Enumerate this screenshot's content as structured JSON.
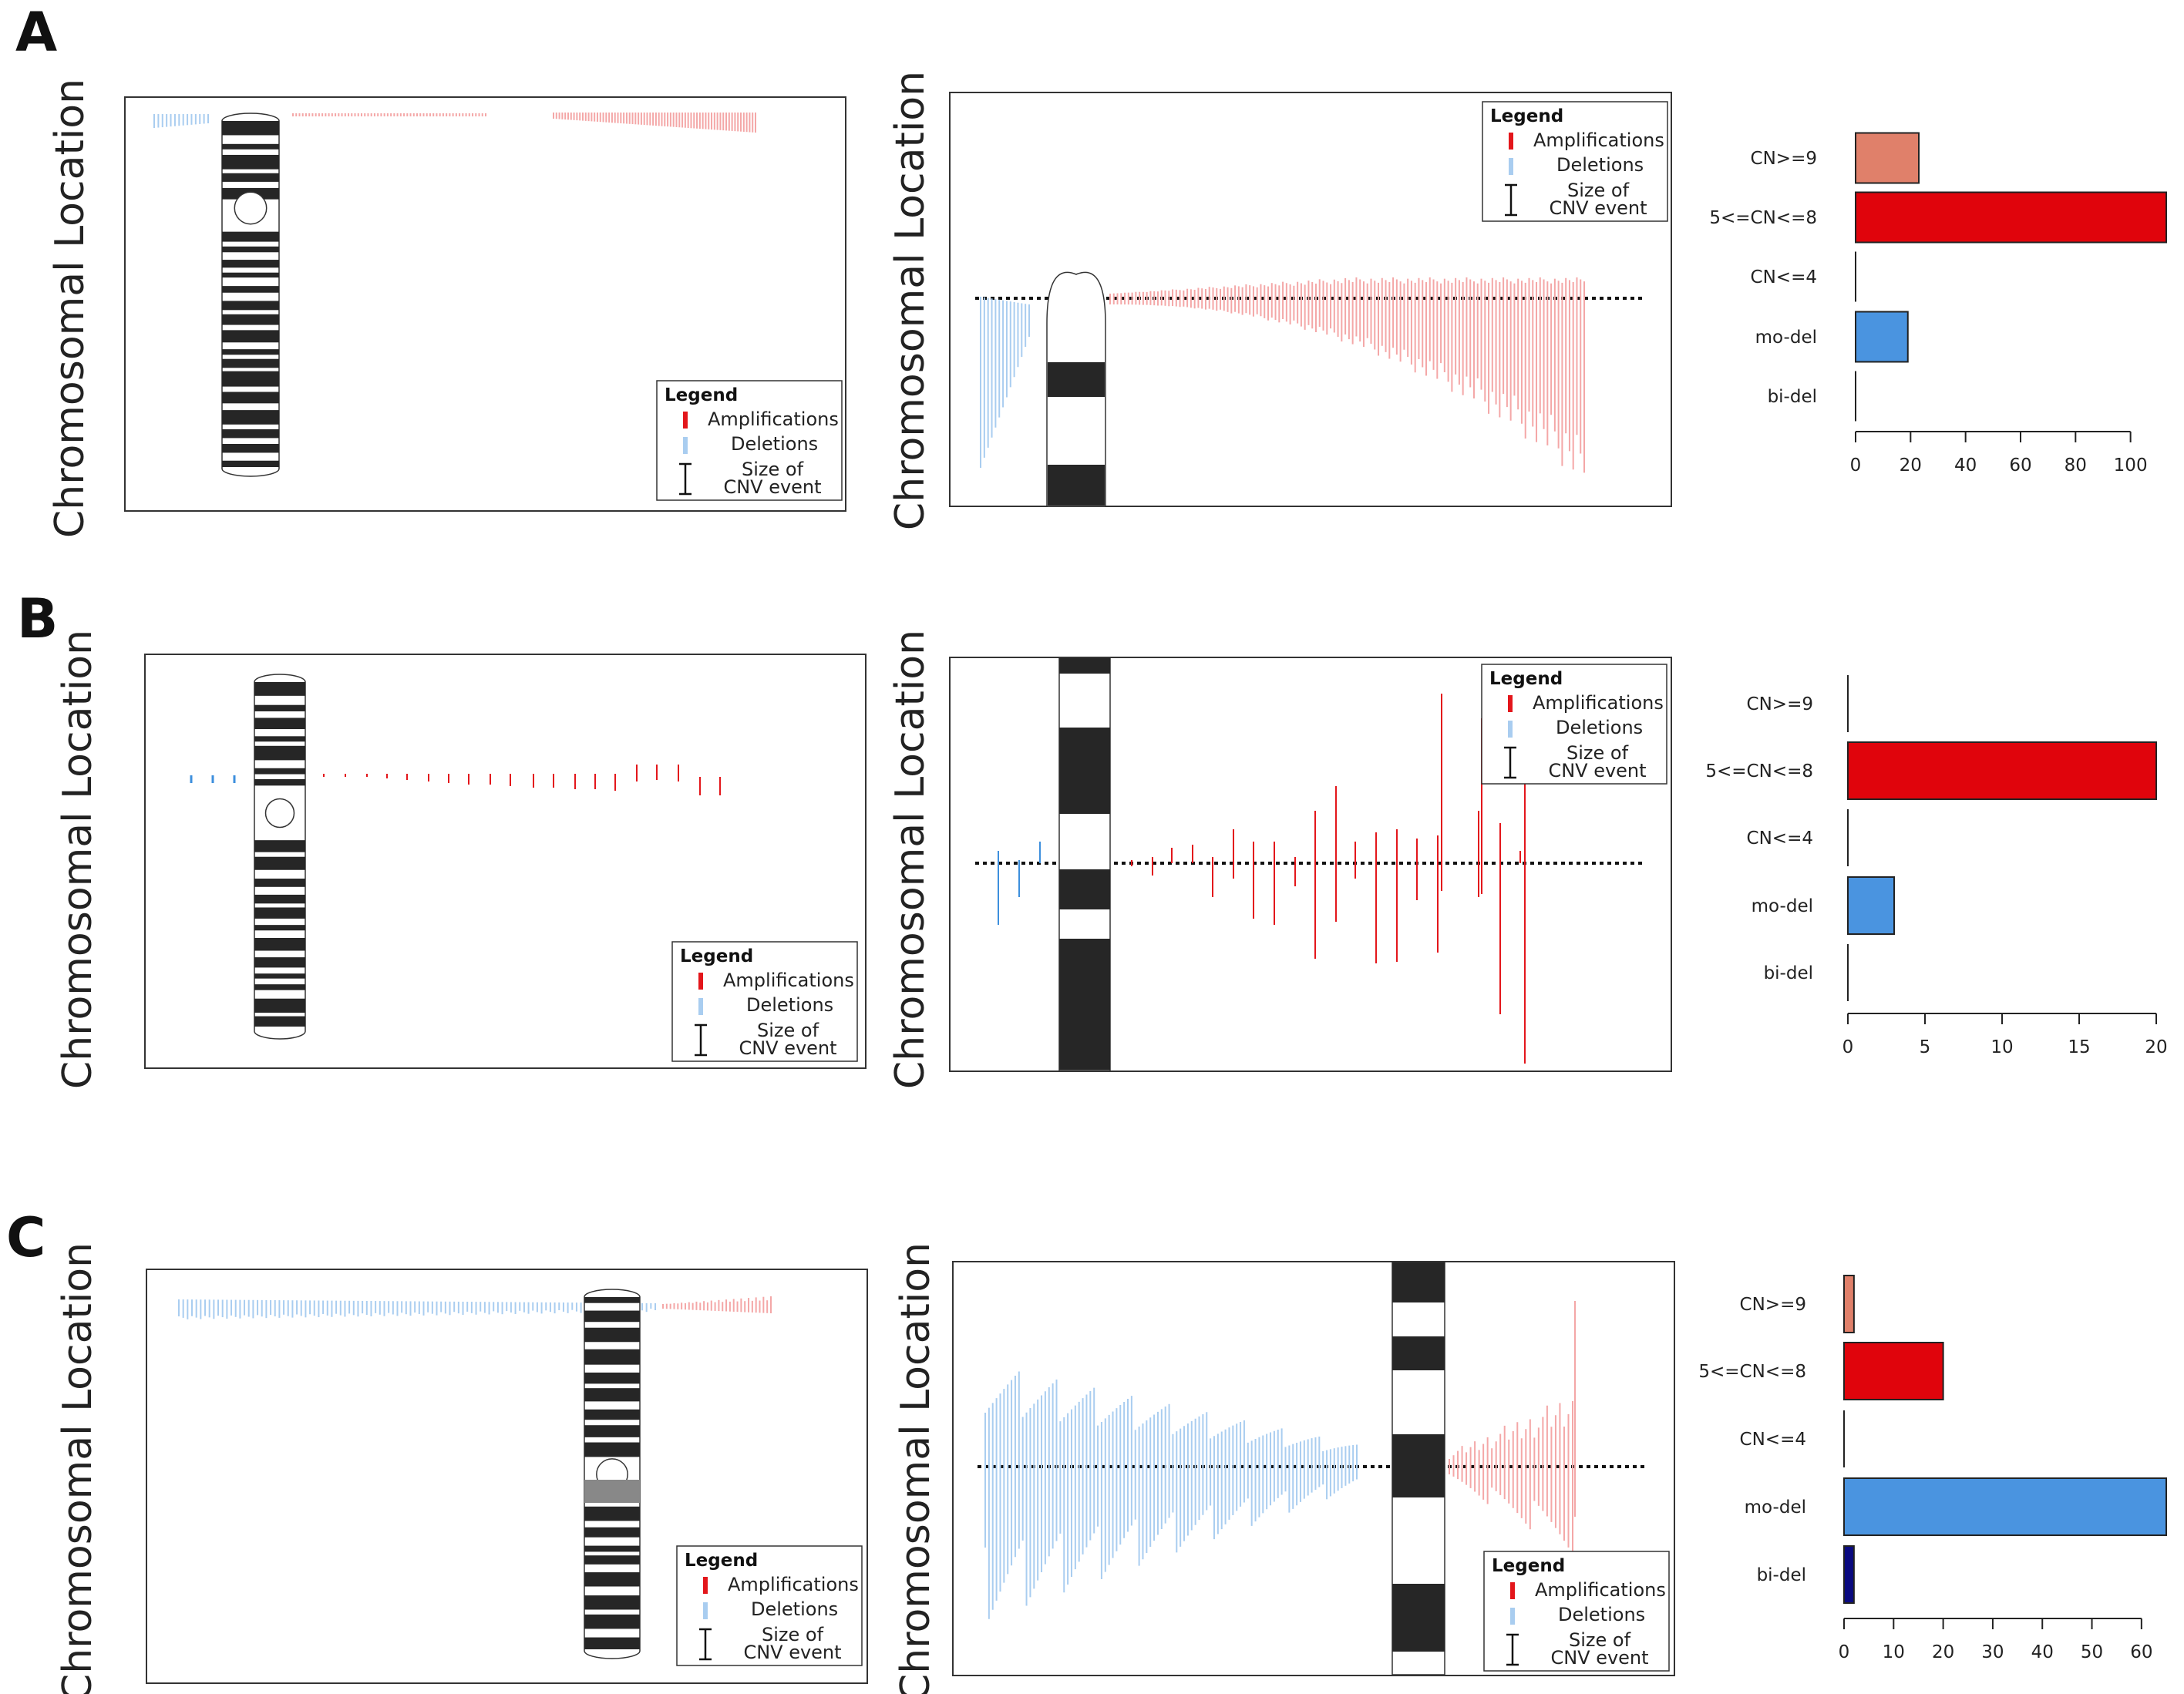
{
  "figure": {
    "panels": [
      "A",
      "B",
      "C"
    ],
    "y_axis_label": "Chromosomal Location",
    "legend": {
      "title": "Legend",
      "amplifications": "Amplifications",
      "deletions": "Deletions",
      "size_line1": "Size of",
      "size_line2": "CNV event"
    },
    "colors": {
      "amplification_light": "#f4a7a7",
      "amplification": "#e3161b",
      "deletion_light": "#a9cdf0",
      "deletion": "#3d8fdd",
      "cn_ge9": "#e0806a",
      "cn_5_8": "#e0040c",
      "mo_del": "#4a94e0",
      "bi_del": "#0a0a80",
      "band": "#262626"
    }
  },
  "chart_data": [
    {
      "panel": "A",
      "type": "bar",
      "orientation": "horizontal",
      "categories": [
        "CN>=9",
        "5<=CN<=8",
        "CN<=4",
        "mo-del",
        "bi-del"
      ],
      "values": [
        23,
        113,
        0,
        19,
        0
      ],
      "xlim": [
        0,
        113
      ],
      "xticks": [
        0,
        20,
        40,
        60,
        80,
        100
      ]
    },
    {
      "panel": "B",
      "type": "bar",
      "orientation": "horizontal",
      "categories": [
        "CN>=9",
        "5<=CN<=8",
        "CN<=4",
        "mo-del",
        "bi-del"
      ],
      "values": [
        0,
        20,
        0,
        3,
        0
      ],
      "xlim": [
        0,
        20.5
      ],
      "xticks": [
        0,
        5,
        10,
        15,
        20
      ]
    },
    {
      "panel": "C",
      "type": "bar",
      "orientation": "horizontal",
      "categories": [
        "CN>=9",
        "5<=CN<=8",
        "CN<=4",
        "mo-del",
        "bi-del"
      ],
      "values": [
        2,
        20,
        0,
        65,
        2
      ],
      "xlim": [
        0,
        65
      ],
      "xticks": [
        0,
        10,
        20,
        30,
        40,
        50,
        60
      ]
    }
  ]
}
